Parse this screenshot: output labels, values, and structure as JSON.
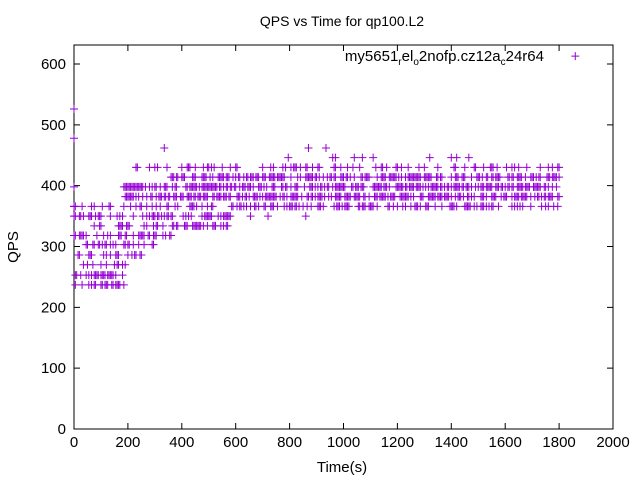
{
  "chart_data": {
    "type": "scatter",
    "title": "QPS vs Time for qp100.L2",
    "xlabel": "Time(s)",
    "ylabel": "QPS",
    "xlim": [
      0,
      2000
    ],
    "ylim": [
      0,
      640
    ],
    "xticks": [
      0,
      200,
      400,
      600,
      800,
      1000,
      1200,
      1400,
      1600,
      1800,
      2000
    ],
    "yticks": [
      0,
      100,
      200,
      300,
      400,
      500,
      600
    ],
    "grid": false,
    "legend": {
      "placement": "top-right",
      "label_parts": [
        "my5651",
        "r",
        "el",
        "o",
        "2nofp.cz12a",
        "c",
        "24r64"
      ]
    },
    "series": [
      {
        "name": "my5651_rel_o2nofp.cz12a_c24r64",
        "color": "#9400d3",
        "marker": "plus",
        "sample_step_s": 5,
        "bands": [
          {
            "qps": 237,
            "t": [
              0,
              185
            ],
            "density": 0.5
          },
          {
            "qps": 253,
            "t": [
              0,
              185
            ],
            "density": 0.5
          },
          {
            "qps": 270,
            "t": [
              20,
              190
            ],
            "density": 0.35
          },
          {
            "qps": 286,
            "t": [
              0,
              250
            ],
            "density": 0.35
          },
          {
            "qps": 303,
            "t": [
              45,
              295
            ],
            "density": 0.4
          },
          {
            "qps": 318,
            "t": [
              0,
              370
            ],
            "density": 0.45
          },
          {
            "qps": 334,
            "t": [
              65,
              570
            ],
            "density": 0.4
          },
          {
            "qps": 350,
            "t": [
              0,
              600
            ],
            "density": 0.4
          },
          {
            "qps": 350,
            "t": [
              650,
              1000
            ],
            "density": 0.08
          },
          {
            "qps": 366,
            "t": [
              0,
              1800
            ],
            "density": 0.35
          },
          {
            "qps": 382,
            "t": [
              185,
              1800
            ],
            "density": 0.6
          },
          {
            "qps": 398,
            "t": [
              185,
              1800
            ],
            "density": 0.65
          },
          {
            "qps": 414,
            "t": [
              350,
              1800
            ],
            "density": 0.55
          },
          {
            "qps": 430,
            "t": [
              200,
              1800
            ],
            "density": 0.2
          },
          {
            "qps": 446,
            "t": [
              780,
              1760
            ],
            "density": 0.05
          },
          {
            "qps": 462,
            "t": [
              780,
              940
            ],
            "density": 0.1
          }
        ],
        "extra_points": [
          [
            0,
            526
          ],
          [
            0,
            478
          ],
          [
            335,
            462
          ],
          [
            0,
            398
          ],
          [
            0,
            366
          ],
          [
            0,
            318
          ],
          [
            1860,
            613
          ]
        ]
      }
    ]
  }
}
